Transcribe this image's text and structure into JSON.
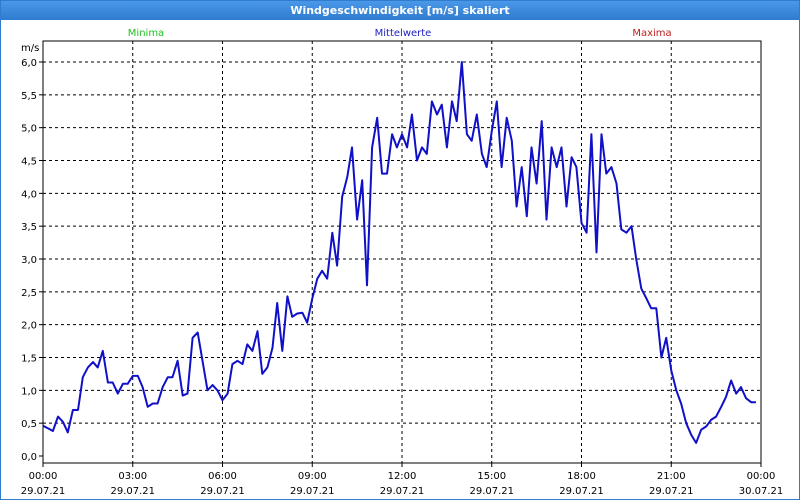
{
  "window": {
    "title": "Windgeschwindigkeit [m/s] skaliert"
  },
  "legend": {
    "minima": {
      "label": "Minima",
      "color": "#20c020"
    },
    "mittelwerte": {
      "label": "Mittelwerte",
      "color": "#2020c0"
    },
    "maxima": {
      "label": "Maxima",
      "color": "#c02020"
    }
  },
  "chart_data": {
    "type": "line",
    "title": "Windgeschwindigkeit [m/s] skaliert",
    "ylabel": "m/s",
    "ylim": [
      0,
      6.0
    ],
    "xlim_hours": [
      0,
      24
    ],
    "grid": true,
    "yticks": [
      "0,0",
      "0,5",
      "1,0",
      "1,5",
      "2,0",
      "2,5",
      "3,0",
      "3,5",
      "4,0",
      "4,5",
      "5,0",
      "5,5",
      "6,0"
    ],
    "xticks": [
      {
        "time": "00:00",
        "date": "29.07.21"
      },
      {
        "time": "03:00",
        "date": "29.07.21"
      },
      {
        "time": "06:00",
        "date": "29.07.21"
      },
      {
        "time": "09:00",
        "date": "29.07.21"
      },
      {
        "time": "12:00",
        "date": "29.07.21"
      },
      {
        "time": "15:00",
        "date": "29.07.21"
      },
      {
        "time": "18:00",
        "date": "29.07.21"
      },
      {
        "time": "21:00",
        "date": "29.07.21"
      },
      {
        "time": "00:00",
        "date": "30.07.21"
      }
    ],
    "series": [
      {
        "name": "Mittelwerte",
        "color": "#1010c8",
        "x_hours": [
          0.0,
          0.17,
          0.33,
          0.5,
          0.67,
          0.83,
          1.0,
          1.17,
          1.33,
          1.5,
          1.67,
          1.83,
          2.0,
          2.17,
          2.33,
          2.5,
          2.67,
          2.83,
          3.0,
          3.17,
          3.33,
          3.5,
          3.67,
          3.83,
          4.0,
          4.17,
          4.33,
          4.5,
          4.67,
          4.83,
          5.0,
          5.17,
          5.33,
          5.5,
          5.67,
          5.83,
          6.0,
          6.17,
          6.33,
          6.5,
          6.67,
          6.83,
          7.0,
          7.17,
          7.33,
          7.5,
          7.67,
          7.83,
          8.0,
          8.17,
          8.33,
          8.5,
          8.67,
          8.83,
          9.0,
          9.17,
          9.33,
          9.5,
          9.67,
          9.83,
          10.0,
          10.17,
          10.33,
          10.5,
          10.67,
          10.83,
          11.0,
          11.17,
          11.33,
          11.5,
          11.67,
          11.83,
          12.0,
          12.17,
          12.33,
          12.5,
          12.67,
          12.83,
          13.0,
          13.17,
          13.33,
          13.5,
          13.67,
          13.83,
          14.0,
          14.17,
          14.33,
          14.5,
          14.67,
          14.83,
          15.0,
          15.17,
          15.33,
          15.5,
          15.67,
          15.83,
          16.0,
          16.17,
          16.33,
          16.5,
          16.67,
          16.83,
          17.0,
          17.17,
          17.33,
          17.5,
          17.67,
          17.83,
          18.0,
          18.17,
          18.33,
          18.5,
          18.67,
          18.83,
          19.0,
          19.17,
          19.33,
          19.5,
          19.67,
          19.83,
          20.0,
          20.17,
          20.33,
          20.5,
          20.67,
          20.83,
          21.0,
          21.17,
          21.33,
          21.5,
          21.67,
          21.83,
          22.0,
          22.17,
          22.33,
          22.5,
          22.67,
          22.83,
          23.0,
          23.17,
          23.33,
          23.5,
          23.67,
          23.83
        ],
        "values": [
          0.46,
          0.42,
          0.38,
          0.6,
          0.52,
          0.36,
          0.7,
          0.7,
          1.2,
          1.35,
          1.43,
          1.35,
          1.6,
          1.12,
          1.12,
          0.95,
          1.1,
          1.1,
          1.22,
          1.22,
          1.05,
          0.75,
          0.8,
          0.8,
          1.05,
          1.2,
          1.2,
          1.45,
          0.92,
          0.95,
          1.8,
          1.88,
          1.45,
          1.0,
          1.08,
          1.0,
          0.85,
          0.95,
          1.4,
          1.45,
          1.4,
          1.7,
          1.6,
          1.9,
          1.25,
          1.35,
          1.65,
          2.33,
          1.6,
          2.43,
          2.12,
          2.17,
          2.18,
          2.03,
          2.4,
          2.7,
          2.82,
          2.7,
          3.4,
          2.9,
          3.95,
          4.25,
          4.7,
          3.6,
          4.2,
          2.6,
          4.7,
          5.15,
          4.3,
          4.3,
          4.9,
          4.7,
          4.9,
          4.7,
          5.2,
          4.5,
          4.7,
          4.6,
          5.4,
          5.2,
          5.35,
          4.7,
          5.4,
          5.1,
          6.0,
          4.9,
          4.8,
          5.2,
          4.6,
          4.4,
          4.95,
          5.4,
          4.4,
          5.15,
          4.8,
          3.8,
          4.4,
          3.65,
          4.7,
          4.15,
          5.1,
          3.6,
          4.7,
          4.4,
          4.7,
          3.8,
          4.55,
          4.4,
          3.55,
          3.4,
          4.9,
          3.1,
          4.9,
          4.3,
          4.4,
          4.15,
          3.45,
          3.4,
          3.5,
          3.0,
          2.55,
          2.4,
          2.25,
          2.25,
          1.5,
          1.8,
          1.3,
          1.0,
          0.8,
          0.5,
          0.32,
          0.2,
          0.4,
          0.45,
          0.55,
          0.6,
          0.75,
          0.9,
          1.15,
          0.95,
          1.05,
          0.88,
          0.82,
          0.82
        ]
      }
    ]
  }
}
